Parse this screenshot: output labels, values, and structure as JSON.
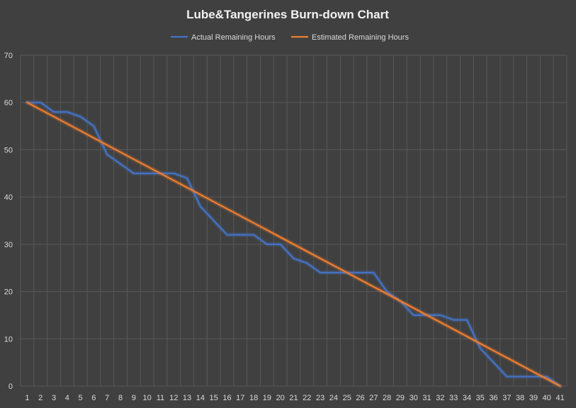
{
  "chart_data": {
    "type": "line",
    "title": "Lube&Tangerines Burn-down Chart",
    "xlabel": "",
    "ylabel": "",
    "x": [
      1,
      2,
      3,
      4,
      5,
      6,
      7,
      8,
      9,
      10,
      11,
      12,
      13,
      14,
      15,
      16,
      17,
      18,
      19,
      20,
      21,
      22,
      23,
      24,
      25,
      26,
      27,
      28,
      29,
      30,
      31,
      32,
      33,
      34,
      35,
      36,
      37,
      38,
      39,
      40,
      41
    ],
    "ylim": [
      0,
      70
    ],
    "yticks": [
      0,
      10,
      20,
      30,
      40,
      50,
      60,
      70
    ],
    "grid": true,
    "legend_position": "top",
    "series": [
      {
        "name": "Actual Remaining Hours",
        "color": "#4472c4",
        "values": [
          60,
          60,
          58,
          58,
          57,
          55,
          49,
          47,
          45,
          45,
          45,
          45,
          44,
          38,
          35,
          32,
          32,
          32,
          30,
          30,
          27,
          26,
          24,
          24,
          24,
          24,
          24,
          20,
          18,
          15,
          15,
          15,
          14,
          14,
          8,
          5,
          2,
          2,
          2,
          2,
          0
        ]
      },
      {
        "name": "Estimated Remaining Hours",
        "color": "#ed7d31",
        "values": [
          60,
          58.5,
          57,
          55.5,
          54,
          52.5,
          51,
          49.5,
          48,
          46.5,
          45,
          43.5,
          42,
          40.5,
          39,
          37.5,
          36,
          34.5,
          33,
          31.5,
          30,
          28.5,
          27,
          25.5,
          24,
          22.5,
          21,
          19.5,
          18,
          16.5,
          15,
          13.5,
          12,
          10.5,
          9,
          7.5,
          6,
          4.5,
          3,
          1.5,
          0
        ]
      }
    ]
  }
}
